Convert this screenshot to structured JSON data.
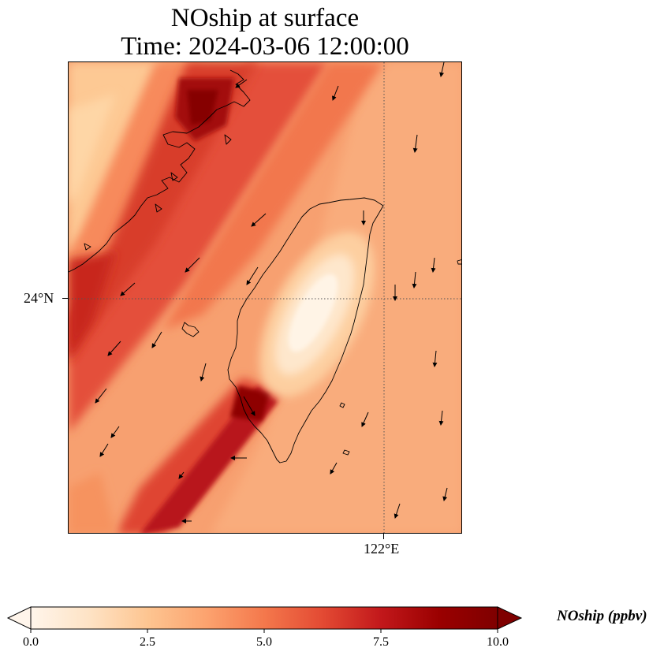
{
  "title": {
    "line1": "NOship at surface",
    "line2": "Time: 2024-03-06 12:00:00"
  },
  "axes": {
    "lat_label": "24°N",
    "lon_label": "122°E"
  },
  "colorbar": {
    "label": "NOship (ppbv)",
    "ticks": [
      "0.0",
      "2.5",
      "5.0",
      "7.5",
      "10.0"
    ],
    "min": 0,
    "max": 10,
    "extend": "both",
    "colormap": [
      "#fff5eb",
      "#fee3c5",
      "#fdc591",
      "#fc9e6b",
      "#f4784c",
      "#e34a33",
      "#c2181b",
      "#9a0000",
      "#7f0000"
    ]
  },
  "map": {
    "features": [
      "coastline",
      "gridlines-dotted",
      "wind-vectors"
    ],
    "field_description_colors": {
      "background": "#f59a6c",
      "high": "#a50000",
      "low": "#fff1e0"
    }
  }
}
